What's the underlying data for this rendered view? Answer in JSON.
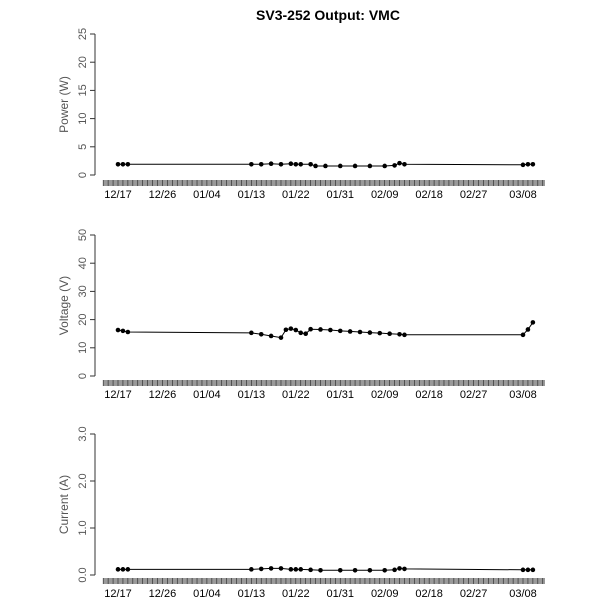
{
  "chart_data": {
    "title": "SV3-252 Output: VMC",
    "x_tick_labels": [
      "12/17",
      "12/26",
      "01/04",
      "01/13",
      "01/22",
      "01/31",
      "02/09",
      "02/18",
      "02/27",
      "03/08"
    ],
    "x_start": "12/15",
    "panels": [
      {
        "id": "power",
        "type": "line",
        "ylabel": "Power (W)",
        "ylim": [
          0,
          25
        ],
        "yticks": [
          "0",
          "5",
          "10",
          "15",
          "20",
          "25"
        ],
        "points": [
          {
            "x": "12/17",
            "y": 1.9
          },
          {
            "x": "12/18",
            "y": 1.9
          },
          {
            "x": "12/19",
            "y": 1.9
          },
          {
            "x": "01/13",
            "y": 1.9
          },
          {
            "x": "01/15",
            "y": 1.9
          },
          {
            "x": "01/17",
            "y": 2.0
          },
          {
            "x": "01/19",
            "y": 1.9
          },
          {
            "x": "01/21",
            "y": 2.0
          },
          {
            "x": "01/22",
            "y": 1.9
          },
          {
            "x": "01/23",
            "y": 1.9
          },
          {
            "x": "01/25",
            "y": 1.9
          },
          {
            "x": "01/26",
            "y": 1.6
          },
          {
            "x": "01/28",
            "y": 1.6
          },
          {
            "x": "01/31",
            "y": 1.6
          },
          {
            "x": "02/03",
            "y": 1.6
          },
          {
            "x": "02/06",
            "y": 1.6
          },
          {
            "x": "02/09",
            "y": 1.6
          },
          {
            "x": "02/11",
            "y": 1.7
          },
          {
            "x": "02/12",
            "y": 2.1
          },
          {
            "x": "02/13",
            "y": 1.9
          },
          {
            "x": "03/08",
            "y": 1.8
          },
          {
            "x": "03/09",
            "y": 1.9
          },
          {
            "x": "03/10",
            "y": 1.9
          }
        ]
      },
      {
        "id": "voltage",
        "type": "line",
        "ylabel": "Voltage (V)",
        "ylim": [
          0,
          50
        ],
        "yticks": [
          "0",
          "10",
          "20",
          "30",
          "40",
          "50"
        ],
        "points": [
          {
            "x": "12/17",
            "y": 16.3
          },
          {
            "x": "12/18",
            "y": 16.0
          },
          {
            "x": "12/19",
            "y": 15.6
          },
          {
            "x": "01/13",
            "y": 15.3
          },
          {
            "x": "01/15",
            "y": 14.8
          },
          {
            "x": "01/17",
            "y": 14.2
          },
          {
            "x": "01/19",
            "y": 13.6
          },
          {
            "x": "01/20",
            "y": 16.4
          },
          {
            "x": "01/21",
            "y": 16.8
          },
          {
            "x": "01/22",
            "y": 16.3
          },
          {
            "x": "01/23",
            "y": 15.3
          },
          {
            "x": "01/24",
            "y": 15.0
          },
          {
            "x": "01/25",
            "y": 16.6
          },
          {
            "x": "01/27",
            "y": 16.5
          },
          {
            "x": "01/29",
            "y": 16.3
          },
          {
            "x": "01/31",
            "y": 16.0
          },
          {
            "x": "02/02",
            "y": 15.8
          },
          {
            "x": "02/04",
            "y": 15.6
          },
          {
            "x": "02/06",
            "y": 15.4
          },
          {
            "x": "02/08",
            "y": 15.2
          },
          {
            "x": "02/10",
            "y": 15.0
          },
          {
            "x": "02/12",
            "y": 14.8
          },
          {
            "x": "02/13",
            "y": 14.6
          },
          {
            "x": "03/08",
            "y": 14.6
          },
          {
            "x": "03/09",
            "y": 16.5
          },
          {
            "x": "03/10",
            "y": 19.0
          }
        ]
      },
      {
        "id": "current",
        "type": "line",
        "ylabel": "Current (A)",
        "ylim": [
          0,
          3.0
        ],
        "yticks": [
          "0.0",
          "1.0",
          "2.0",
          "3.0"
        ],
        "points": [
          {
            "x": "12/17",
            "y": 0.12
          },
          {
            "x": "12/18",
            "y": 0.12
          },
          {
            "x": "12/19",
            "y": 0.12
          },
          {
            "x": "01/13",
            "y": 0.12
          },
          {
            "x": "01/15",
            "y": 0.13
          },
          {
            "x": "01/17",
            "y": 0.14
          },
          {
            "x": "01/19",
            "y": 0.14
          },
          {
            "x": "01/21",
            "y": 0.12
          },
          {
            "x": "01/22",
            "y": 0.12
          },
          {
            "x": "01/23",
            "y": 0.12
          },
          {
            "x": "01/25",
            "y": 0.11
          },
          {
            "x": "01/27",
            "y": 0.1
          },
          {
            "x": "01/31",
            "y": 0.1
          },
          {
            "x": "02/03",
            "y": 0.1
          },
          {
            "x": "02/06",
            "y": 0.1
          },
          {
            "x": "02/09",
            "y": 0.1
          },
          {
            "x": "02/11",
            "y": 0.11
          },
          {
            "x": "02/12",
            "y": 0.14
          },
          {
            "x": "02/13",
            "y": 0.13
          },
          {
            "x": "03/08",
            "y": 0.11
          },
          {
            "x": "03/09",
            "y": 0.11
          },
          {
            "x": "03/10",
            "y": 0.11
          }
        ]
      }
    ]
  }
}
